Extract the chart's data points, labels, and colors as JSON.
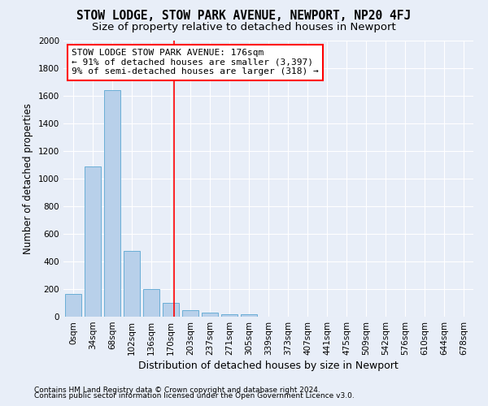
{
  "title": "STOW LODGE, STOW PARK AVENUE, NEWPORT, NP20 4FJ",
  "subtitle": "Size of property relative to detached houses in Newport",
  "xlabel": "Distribution of detached houses by size in Newport",
  "ylabel": "Number of detached properties",
  "bar_labels": [
    "0sqm",
    "34sqm",
    "68sqm",
    "102sqm",
    "136sqm",
    "170sqm",
    "203sqm",
    "237sqm",
    "271sqm",
    "305sqm",
    "339sqm",
    "373sqm",
    "407sqm",
    "441sqm",
    "475sqm",
    "509sqm",
    "542sqm",
    "576sqm",
    "610sqm",
    "644sqm",
    "678sqm"
  ],
  "bar_values": [
    165,
    1090,
    1640,
    475,
    200,
    100,
    47,
    30,
    20,
    20,
    0,
    0,
    0,
    0,
    0,
    0,
    0,
    0,
    0,
    0,
    0
  ],
  "bar_color": "#b8d0ea",
  "bar_edgecolor": "#6aaed6",
  "ylim": [
    0,
    2000
  ],
  "yticks": [
    0,
    200,
    400,
    600,
    800,
    1000,
    1200,
    1400,
    1600,
    1800,
    2000
  ],
  "red_line_x": 5.18,
  "annotation_text": "STOW LODGE STOW PARK AVENUE: 176sqm\n← 91% of detached houses are smaller (3,397)\n9% of semi-detached houses are larger (318) →",
  "footer1": "Contains HM Land Registry data © Crown copyright and database right 2024.",
  "footer2": "Contains public sector information licensed under the Open Government Licence v3.0.",
  "background_color": "#e8eef8",
  "grid_color": "#ffffff",
  "title_fontsize": 10.5,
  "subtitle_fontsize": 9.5,
  "annotation_fontsize": 8,
  "tick_fontsize": 7.5,
  "ylabel_fontsize": 8.5,
  "xlabel_fontsize": 9
}
